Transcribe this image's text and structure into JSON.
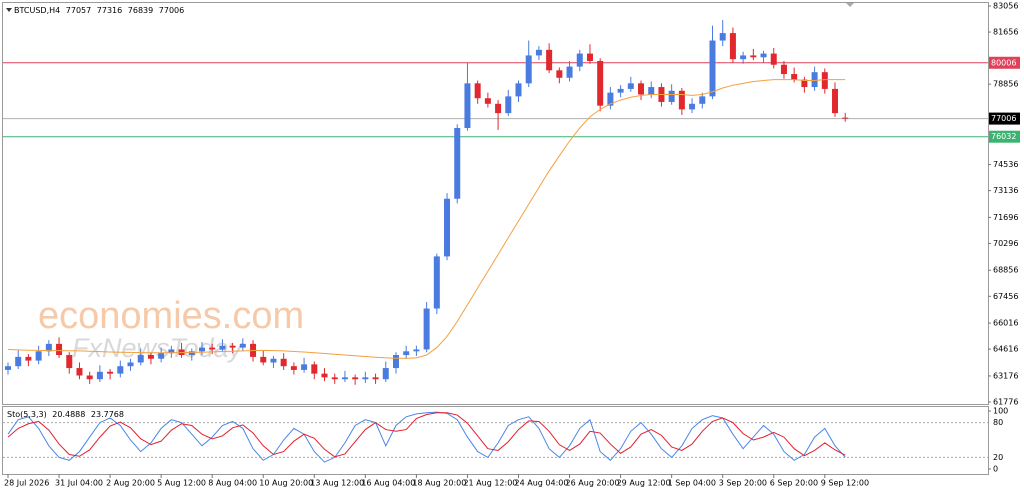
{
  "chart_data": [
    {
      "type": "candlestick",
      "symbol": "BTCUSD,H4",
      "categories": [
        "28 Jul 2026",
        null,
        null,
        null,
        null,
        "31 Jul 04:00",
        null,
        null,
        null,
        null,
        "2 Aug 20:00",
        null,
        null,
        null,
        null,
        "5 Aug 12:00",
        null,
        null,
        null,
        null,
        "8 Aug 04:00",
        null,
        null,
        null,
        null,
        "10 Aug 20:00",
        null,
        null,
        null,
        null,
        "13 Aug 12:00",
        null,
        null,
        null,
        null,
        "16 Aug 04:00",
        null,
        null,
        null,
        null,
        "18 Aug 20:00",
        null,
        null,
        null,
        null,
        "21 Aug 12:00",
        null,
        null,
        null,
        null,
        "24 Aug 04:00",
        null,
        null,
        null,
        null,
        "26 Aug 20:00",
        null,
        null,
        null,
        null,
        "29 Aug 12:00",
        null,
        null,
        null,
        null,
        "1 Sep 04:00",
        null,
        null,
        null,
        null,
        "3 Sep 20:00",
        null,
        null,
        null,
        null,
        "6 Sep 20:00",
        null,
        null,
        null,
        null,
        "9 Sep 12:00",
        null,
        null
      ],
      "candles": [
        [
          63500,
          63900,
          63250,
          63700
        ],
        [
          63700,
          64550,
          63550,
          64200
        ],
        [
          64200,
          64350,
          63700,
          64000
        ],
        [
          64000,
          64800,
          63800,
          64500
        ],
        [
          64500,
          65100,
          64250,
          64900
        ],
        [
          64900,
          65250,
          64150,
          64300
        ],
        [
          64300,
          64450,
          63300,
          63600
        ],
        [
          63600,
          63900,
          63000,
          63200
        ],
        [
          63200,
          63400,
          62750,
          63000
        ],
        [
          63000,
          63750,
          62850,
          63400
        ],
        [
          63400,
          63550,
          63000,
          63300
        ],
        [
          63300,
          64000,
          63100,
          63700
        ],
        [
          63700,
          64100,
          63450,
          63900
        ],
        [
          63900,
          64650,
          63750,
          64300
        ],
        [
          64300,
          64450,
          63800,
          64100
        ],
        [
          64100,
          64700,
          63900,
          64400
        ],
        [
          64400,
          64800,
          64150,
          64600
        ],
        [
          64600,
          64950,
          64150,
          64300
        ],
        [
          64300,
          64650,
          64000,
          64500
        ],
        [
          64500,
          65000,
          64300,
          64700
        ],
        [
          64700,
          64900,
          64350,
          64600
        ],
        [
          64600,
          65150,
          64450,
          64800
        ],
        [
          64800,
          64950,
          64400,
          64700
        ],
        [
          64700,
          65200,
          64500,
          64900
        ],
        [
          64900,
          65100,
          63950,
          64200
        ],
        [
          64200,
          64550,
          63750,
          63900
        ],
        [
          63900,
          64250,
          63600,
          64100
        ],
        [
          64100,
          64400,
          63500,
          63700
        ],
        [
          63700,
          63900,
          63250,
          63500
        ],
        [
          63500,
          64150,
          63350,
          63800
        ],
        [
          63800,
          63950,
          63000,
          63300
        ],
        [
          63300,
          63600,
          62900,
          63100
        ],
        [
          63100,
          63300,
          62750,
          63000
        ],
        [
          63000,
          63450,
          62850,
          63100
        ],
        [
          63100,
          63250,
          62700,
          63000
        ],
        [
          63000,
          63400,
          62800,
          63100
        ],
        [
          63100,
          63300,
          62750,
          63000
        ],
        [
          63000,
          63950,
          62850,
          63600
        ],
        [
          63600,
          64450,
          63300,
          64300
        ],
        [
          64300,
          64800,
          64100,
          64500
        ],
        [
          64500,
          64800,
          64250,
          64600
        ],
        [
          64600,
          67150,
          64450,
          66800
        ],
        [
          66800,
          69750,
          66500,
          69600
        ],
        [
          69600,
          73000,
          69400,
          72700
        ],
        [
          72700,
          76700,
          72450,
          76500
        ],
        [
          76500,
          80000,
          76350,
          78900
        ],
        [
          78900,
          79050,
          77800,
          78100
        ],
        [
          78100,
          78400,
          77600,
          77800
        ],
        [
          77800,
          78000,
          76400,
          77300
        ],
        [
          77300,
          78550,
          77150,
          78200
        ],
        [
          78200,
          79050,
          77900,
          78900
        ],
        [
          78900,
          81200,
          78700,
          80400
        ],
        [
          80400,
          80900,
          80150,
          80700
        ],
        [
          80700,
          81050,
          79450,
          79600
        ],
        [
          79600,
          79750,
          78900,
          79200
        ],
        [
          79200,
          80100,
          79000,
          79800
        ],
        [
          79800,
          80700,
          79550,
          80500
        ],
        [
          80500,
          81000,
          79950,
          80100
        ],
        [
          80100,
          80250,
          77400,
          77700
        ],
        [
          77700,
          78700,
          77500,
          78400
        ],
        [
          78400,
          78800,
          78150,
          78600
        ],
        [
          78600,
          79250,
          78450,
          78900
        ],
        [
          78900,
          79050,
          78000,
          78300
        ],
        [
          78300,
          79000,
          78100,
          78700
        ],
        [
          78700,
          78900,
          77650,
          77900
        ],
        [
          77900,
          78850,
          77750,
          78500
        ],
        [
          78500,
          78650,
          77200,
          77500
        ],
        [
          77500,
          78100,
          77300,
          77800
        ],
        [
          77800,
          78400,
          77550,
          78200
        ],
        [
          78200,
          82000,
          78050,
          81200
        ],
        [
          81200,
          82300,
          80900,
          81600
        ],
        [
          81600,
          81900,
          80000,
          80200
        ],
        [
          80200,
          80600,
          79950,
          80400
        ],
        [
          80400,
          80750,
          80150,
          80300
        ],
        [
          80300,
          80650,
          80000,
          80500
        ],
        [
          80500,
          80800,
          79700,
          79900
        ],
        [
          79900,
          80100,
          79150,
          79400
        ],
        [
          79400,
          79750,
          78950,
          79100
        ],
        [
          79100,
          79250,
          78400,
          78700
        ],
        [
          78700,
          79800,
          78500,
          79500
        ],
        [
          79500,
          79700,
          78350,
          78600
        ],
        [
          78600,
          78950,
          77100,
          77300
        ],
        [
          77057,
          77316,
          76839,
          77006
        ]
      ],
      "up_color": "#4a7be0",
      "down_color": "#e0282e",
      "ma": {
        "color": "#f4a040",
        "values": [
          64600,
          64580,
          64560,
          64550,
          64540,
          64540,
          64530,
          64520,
          64500,
          64480,
          64460,
          64450,
          64440,
          64430,
          64420,
          64420,
          64420,
          64430,
          64440,
          64450,
          64470,
          64490,
          64500,
          64520,
          64540,
          64550,
          64540,
          64520,
          64490,
          64460,
          64420,
          64380,
          64340,
          64300,
          64260,
          64220,
          64180,
          64150,
          64130,
          64120,
          64150,
          64300,
          64700,
          65300,
          66100,
          67000,
          67900,
          68800,
          69700,
          70600,
          71500,
          72400,
          73300,
          74200,
          75000,
          75800,
          76500,
          77100,
          77500,
          77800,
          78000,
          78150,
          78250,
          78300,
          78300,
          78300,
          78300,
          78250,
          78300,
          78450,
          78650,
          78800,
          78900,
          79000,
          79050,
          79100,
          79100,
          79100,
          79050,
          79050,
          79100,
          79100,
          79100
        ]
      },
      "hlines": [
        {
          "value": 80006,
          "color": "#e0405a"
        },
        {
          "value": 76032,
          "color": "#3cb371"
        }
      ],
      "current_color": "#b0b0b0",
      "ylim": [
        61776,
        83056
      ],
      "yticks": [
        83056,
        81656,
        78856,
        74536,
        73136,
        71696,
        70296,
        68856,
        67456,
        66016,
        64616,
        63176,
        61776
      ],
      "watermarks": [
        "economies.com",
        "FxNewsToday"
      ]
    },
    {
      "type": "line",
      "label": "Sto(5,3,3)",
      "series": [
        {
          "color": "#4a86e8",
          "values": [
            60,
            85,
            90,
            70,
            40,
            20,
            15,
            30,
            55,
            80,
            88,
            75,
            50,
            30,
            45,
            70,
            85,
            80,
            60,
            40,
            55,
            75,
            82,
            70,
            35,
            15,
            25,
            50,
            70,
            60,
            30,
            12,
            20,
            45,
            75,
            85,
            80,
            40,
            75,
            90,
            95,
            97,
            98,
            96,
            85,
            55,
            30,
            20,
            45,
            75,
            85,
            90,
            70,
            35,
            20,
            40,
            70,
            85,
            30,
            15,
            35,
            65,
            80,
            60,
            35,
            20,
            40,
            70,
            85,
            92,
            88,
            60,
            35,
            55,
            75,
            60,
            30,
            15,
            25,
            55,
            70,
            40,
            20.4888
          ]
        },
        {
          "color": "#e02030",
          "values": [
            55,
            70,
            78,
            82,
            67,
            43,
            25,
            22,
            33,
            55,
            74,
            81,
            71,
            52,
            42,
            48,
            67,
            78,
            75,
            60,
            52,
            57,
            71,
            76,
            62,
            40,
            25,
            30,
            48,
            60,
            53,
            34,
            21,
            26,
            47,
            68,
            80,
            68,
            65,
            68,
            87,
            94,
            97,
            97,
            93,
            79,
            57,
            35,
            32,
            47,
            68,
            83,
            82,
            65,
            42,
            32,
            43,
            65,
            62,
            43,
            27,
            38,
            60,
            68,
            58,
            38,
            32,
            43,
            65,
            82,
            88,
            80,
            61,
            50,
            55,
            63,
            55,
            35,
            23,
            32,
            45,
            33,
            23.7768
          ]
        }
      ],
      "ylim": [
        0,
        100
      ],
      "yticks": [
        100,
        80,
        20,
        0
      ]
    }
  ]
}
